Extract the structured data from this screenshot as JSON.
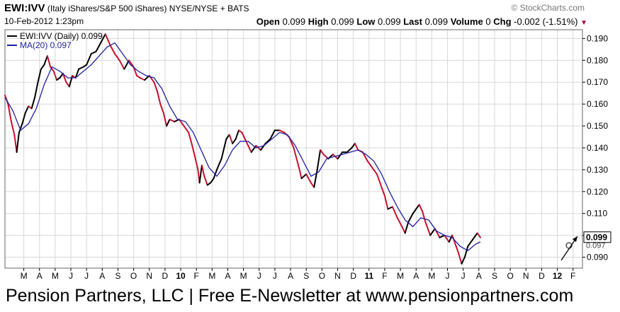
{
  "header": {
    "symbol": "EWI:IVV",
    "description": "(Italy iShares/S&P 500 iShares)",
    "exchange": "NYSE/NYSE + BATS",
    "watermark": "© StockCharts.com",
    "date": "10-Feb-2012 1:23pm",
    "ohlc": [
      {
        "label": "Open",
        "value": "0.099"
      },
      {
        "label": "High",
        "value": "0.099"
      },
      {
        "label": "Low",
        "value": "0.099"
      },
      {
        "label": "Last",
        "value": "0.099"
      },
      {
        "label": "Volume",
        "value": "0"
      },
      {
        "label": "Chg",
        "value": "-0.002 (-1.51%)"
      }
    ],
    "chg_icon": "down-triangle-icon"
  },
  "legend": {
    "price": "EWI:IVV (Daily) 0.099",
    "ma": "MA(20) 0.097"
  },
  "last_tag": "0.099",
  "ma_tag": "0.097",
  "footer": "Pension Partners, LLC | Free E-Newsletter at www.pensionpartners.com",
  "colors": {
    "price_down": "#c8102e",
    "price_up": "#000000",
    "ma": "#1f1fa0",
    "grid": "#d8d8d8"
  },
  "chart_data": {
    "type": "line",
    "ylim": [
      0.085,
      0.194
    ],
    "yticks": [
      "0.090",
      "0.100",
      "0.110",
      "0.120",
      "0.130",
      "0.140",
      "0.150",
      "0.160",
      "0.170",
      "0.180",
      "0.190"
    ],
    "yticks_values": [
      0.09,
      0.1,
      0.11,
      0.12,
      0.13,
      0.14,
      0.15,
      0.16,
      0.17,
      0.18,
      0.19
    ],
    "xticks": [
      {
        "label": "M",
        "month": 3
      },
      {
        "label": "A",
        "month": 4
      },
      {
        "label": "M",
        "month": 5
      },
      {
        "label": "J",
        "month": 6
      },
      {
        "label": "J",
        "month": 7
      },
      {
        "label": "A",
        "month": 8
      },
      {
        "label": "S",
        "month": 9
      },
      {
        "label": "O",
        "month": 10
      },
      {
        "label": "N",
        "month": 11
      },
      {
        "label": "D",
        "month": 12
      },
      {
        "label": "10",
        "month": 13,
        "bold": true
      },
      {
        "label": "F",
        "month": 14
      },
      {
        "label": "M",
        "month": 15
      },
      {
        "label": "A",
        "month": 16
      },
      {
        "label": "M",
        "month": 17
      },
      {
        "label": "J",
        "month": 18
      },
      {
        "label": "J",
        "month": 19
      },
      {
        "label": "A",
        "month": 20
      },
      {
        "label": "S",
        "month": 21
      },
      {
        "label": "O",
        "month": 22
      },
      {
        "label": "N",
        "month": 23
      },
      {
        "label": "D",
        "month": 24
      },
      {
        "label": "11",
        "month": 25,
        "bold": true
      },
      {
        "label": "F",
        "month": 26
      },
      {
        "label": "M",
        "month": 27
      },
      {
        "label": "A",
        "month": 28
      },
      {
        "label": "M",
        "month": 29
      },
      {
        "label": "J",
        "month": 30
      },
      {
        "label": "J",
        "month": 31
      },
      {
        "label": "A",
        "month": 32
      },
      {
        "label": "S",
        "month": 33
      },
      {
        "label": "O",
        "month": 34
      },
      {
        "label": "N",
        "month": 35
      },
      {
        "label": "D",
        "month": 36
      },
      {
        "label": "12",
        "month": 37,
        "bold": true
      },
      {
        "label": "F",
        "month": 38
      }
    ],
    "series": [
      {
        "name": "EWI:IVV (Daily)",
        "points": [
          [
            1.8,
            0.164
          ],
          [
            2.0,
            0.16
          ],
          [
            2.2,
            0.152
          ],
          [
            2.4,
            0.146
          ],
          [
            2.55,
            0.138
          ],
          [
            2.7,
            0.147
          ],
          [
            2.9,
            0.151
          ],
          [
            3.1,
            0.156
          ],
          [
            3.3,
            0.159
          ],
          [
            3.5,
            0.158
          ],
          [
            3.7,
            0.163
          ],
          [
            3.9,
            0.17
          ],
          [
            4.1,
            0.176
          ],
          [
            4.3,
            0.178
          ],
          [
            4.5,
            0.182
          ],
          [
            4.7,
            0.177
          ],
          [
            4.9,
            0.175
          ],
          [
            5.1,
            0.171
          ],
          [
            5.3,
            0.172
          ],
          [
            5.5,
            0.174
          ],
          [
            5.7,
            0.17
          ],
          [
            5.9,
            0.168
          ],
          [
            6.1,
            0.173
          ],
          [
            6.3,
            0.172
          ],
          [
            6.5,
            0.176
          ],
          [
            6.8,
            0.177
          ],
          [
            7.0,
            0.178
          ],
          [
            7.3,
            0.183
          ],
          [
            7.6,
            0.184
          ],
          [
            7.9,
            0.188
          ],
          [
            8.2,
            0.192
          ],
          [
            8.5,
            0.187
          ],
          [
            8.8,
            0.183
          ],
          [
            9.1,
            0.18
          ],
          [
            9.4,
            0.176
          ],
          [
            9.7,
            0.18
          ],
          [
            10.0,
            0.177
          ],
          [
            10.2,
            0.173
          ],
          [
            10.4,
            0.172
          ],
          [
            10.7,
            0.171
          ],
          [
            11.0,
            0.173
          ],
          [
            11.3,
            0.17
          ],
          [
            11.5,
            0.166
          ],
          [
            11.7,
            0.16
          ],
          [
            11.9,
            0.156
          ],
          [
            12.1,
            0.15
          ],
          [
            12.3,
            0.153
          ],
          [
            12.6,
            0.152
          ],
          [
            12.9,
            0.153
          ],
          [
            13.2,
            0.15
          ],
          [
            13.5,
            0.147
          ],
          [
            13.7,
            0.142
          ],
          [
            13.9,
            0.136
          ],
          [
            14.1,
            0.13
          ],
          [
            14.2,
            0.124
          ],
          [
            14.35,
            0.132
          ],
          [
            14.5,
            0.127
          ],
          [
            14.7,
            0.123
          ],
          [
            14.9,
            0.124
          ],
          [
            15.1,
            0.126
          ],
          [
            15.3,
            0.13
          ],
          [
            15.6,
            0.135
          ],
          [
            15.9,
            0.144
          ],
          [
            16.1,
            0.146
          ],
          [
            16.3,
            0.142
          ],
          [
            16.5,
            0.144
          ],
          [
            16.7,
            0.148
          ],
          [
            16.9,
            0.147
          ],
          [
            17.1,
            0.144
          ],
          [
            17.3,
            0.141
          ],
          [
            17.5,
            0.138
          ],
          [
            17.8,
            0.141
          ],
          [
            18.1,
            0.139
          ],
          [
            18.4,
            0.142
          ],
          [
            18.7,
            0.144
          ],
          [
            19.0,
            0.148
          ],
          [
            19.3,
            0.148
          ],
          [
            19.6,
            0.147
          ],
          [
            19.9,
            0.145
          ],
          [
            20.2,
            0.14
          ],
          [
            20.5,
            0.132
          ],
          [
            20.7,
            0.126
          ],
          [
            21.0,
            0.128
          ],
          [
            21.3,
            0.124
          ],
          [
            21.5,
            0.122
          ],
          [
            21.7,
            0.13
          ],
          [
            21.9,
            0.139
          ],
          [
            22.1,
            0.137
          ],
          [
            22.4,
            0.135
          ],
          [
            22.7,
            0.137
          ],
          [
            23.0,
            0.135
          ],
          [
            23.3,
            0.138
          ],
          [
            23.6,
            0.138
          ],
          [
            23.9,
            0.14
          ],
          [
            24.1,
            0.142
          ],
          [
            24.3,
            0.139
          ],
          [
            24.6,
            0.138
          ],
          [
            24.9,
            0.134
          ],
          [
            25.1,
            0.132
          ],
          [
            25.3,
            0.13
          ],
          [
            25.5,
            0.128
          ],
          [
            25.8,
            0.122
          ],
          [
            26.0,
            0.118
          ],
          [
            26.2,
            0.112
          ],
          [
            26.5,
            0.113
          ],
          [
            26.8,
            0.108
          ],
          [
            27.1,
            0.104
          ],
          [
            27.3,
            0.101
          ],
          [
            27.5,
            0.106
          ],
          [
            27.8,
            0.11
          ],
          [
            28.0,
            0.112
          ],
          [
            28.2,
            0.114
          ],
          [
            28.4,
            0.111
          ],
          [
            28.6,
            0.106
          ],
          [
            28.9,
            0.1
          ],
          [
            29.2,
            0.103
          ],
          [
            29.5,
            0.099
          ],
          [
            29.8,
            0.1
          ],
          [
            30.1,
            0.097
          ],
          [
            30.3,
            0.1
          ],
          [
            30.5,
            0.096
          ],
          [
            30.7,
            0.092
          ],
          [
            30.9,
            0.087
          ],
          [
            31.1,
            0.09
          ],
          [
            31.3,
            0.095
          ],
          [
            31.6,
            0.098
          ],
          [
            31.9,
            0.101
          ],
          [
            32.1,
            0.099
          ]
        ]
      },
      {
        "name": "MA(20)",
        "points": [
          [
            1.8,
            0.163
          ],
          [
            2.3,
            0.157
          ],
          [
            2.8,
            0.148
          ],
          [
            3.3,
            0.151
          ],
          [
            3.8,
            0.158
          ],
          [
            4.3,
            0.169
          ],
          [
            4.8,
            0.177
          ],
          [
            5.3,
            0.175
          ],
          [
            5.8,
            0.172
          ],
          [
            6.3,
            0.172
          ],
          [
            6.8,
            0.175
          ],
          [
            7.3,
            0.178
          ],
          [
            7.8,
            0.182
          ],
          [
            8.3,
            0.186
          ],
          [
            8.8,
            0.188
          ],
          [
            9.3,
            0.183
          ],
          [
            9.8,
            0.178
          ],
          [
            10.3,
            0.175
          ],
          [
            10.8,
            0.173
          ],
          [
            11.3,
            0.172
          ],
          [
            11.8,
            0.167
          ],
          [
            12.3,
            0.159
          ],
          [
            12.8,
            0.153
          ],
          [
            13.3,
            0.152
          ],
          [
            13.8,
            0.147
          ],
          [
            14.3,
            0.139
          ],
          [
            14.8,
            0.131
          ],
          [
            15.3,
            0.127
          ],
          [
            15.8,
            0.132
          ],
          [
            16.3,
            0.139
          ],
          [
            16.8,
            0.143
          ],
          [
            17.3,
            0.143
          ],
          [
            17.8,
            0.14
          ],
          [
            18.3,
            0.141
          ],
          [
            18.8,
            0.144
          ],
          [
            19.3,
            0.147
          ],
          [
            19.8,
            0.146
          ],
          [
            20.3,
            0.141
          ],
          [
            20.8,
            0.134
          ],
          [
            21.3,
            0.127
          ],
          [
            21.8,
            0.129
          ],
          [
            22.3,
            0.135
          ],
          [
            22.8,
            0.136
          ],
          [
            23.3,
            0.137
          ],
          [
            23.8,
            0.138
          ],
          [
            24.3,
            0.139
          ],
          [
            24.8,
            0.137
          ],
          [
            25.3,
            0.134
          ],
          [
            25.8,
            0.128
          ],
          [
            26.3,
            0.12
          ],
          [
            26.8,
            0.113
          ],
          [
            27.3,
            0.107
          ],
          [
            27.8,
            0.104
          ],
          [
            28.3,
            0.108
          ],
          [
            28.8,
            0.107
          ],
          [
            29.3,
            0.102
          ],
          [
            29.8,
            0.1
          ],
          [
            30.3,
            0.099
          ],
          [
            30.8,
            0.095
          ],
          [
            31.3,
            0.093
          ],
          [
            31.8,
            0.096
          ],
          [
            32.1,
            0.097
          ]
        ]
      }
    ]
  }
}
